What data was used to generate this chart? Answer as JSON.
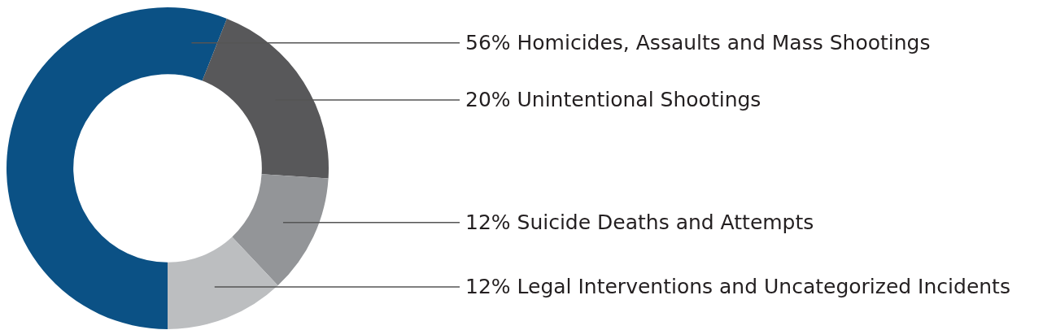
{
  "chart_data": {
    "type": "donut",
    "categories": [
      "Homicides, Assaults and Mass Shootings",
      "Unintentional Shootings",
      "Suicide Deaths and Attempts",
      "Legal Interventions and Uncategorized Incidents"
    ],
    "values": [
      56,
      20,
      12,
      12
    ],
    "value_labels": [
      "56%",
      "20%",
      "12%",
      "12%"
    ],
    "colors": [
      "#0b5185",
      "#58585a",
      "#939598",
      "#bcbec0"
    ]
  }
}
